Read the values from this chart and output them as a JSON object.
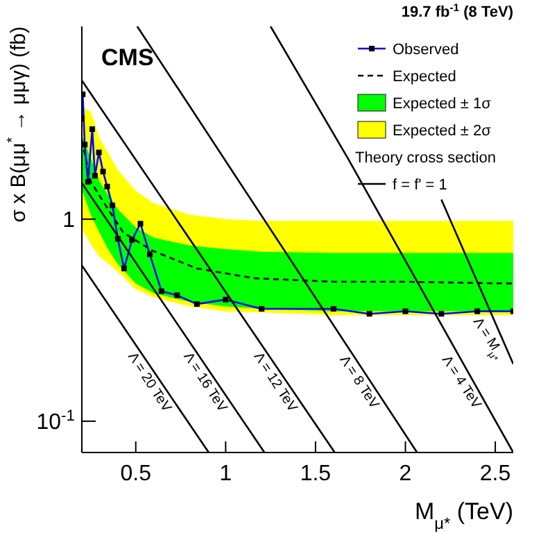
{
  "chart_data": {
    "type": "line",
    "title": "19.7 fb$^{-1}$ (8 TeV)",
    "xlabel": "M$_{μ*}$ (TeV)",
    "ylabel": "σ x B(μμ$^{*}$ → μμγ) (fb)",
    "xlim": [
      0.2,
      2.6
    ],
    "ylim": [
      0.07,
      9
    ],
    "xticks": [
      0.5,
      1,
      1.5,
      2,
      2.5
    ],
    "yticks": [
      {
        "value": 0.1,
        "label": "10$^{-1}$"
      },
      1
    ],
    "log": "y",
    "grid": false,
    "legend": "top right",
    "series": [
      {
        "name": "Expected ± 2σ",
        "type": "area",
        "color": "#ffff00",
        "x": [
          0.2,
          0.25,
          0.3,
          0.35,
          0.4,
          0.5,
          0.6,
          0.8,
          1.0,
          1.2,
          1.6,
          2.0,
          2.6
        ],
        "values": [
          null,
          null,
          null,
          null,
          null,
          null,
          null,
          null,
          null,
          null,
          null,
          null,
          null
        ],
        "lower": [
          0.9,
          0.75,
          0.65,
          0.6,
          0.55,
          0.45,
          0.41,
          0.37,
          0.35,
          0.345,
          0.335,
          0.335,
          0.335
        ],
        "upper": [
          3.6,
          3.4,
          2.5,
          2.1,
          1.75,
          1.38,
          1.2,
          1.05,
          1.0,
          0.98,
          0.98,
          0.98,
          0.98
        ]
      },
      {
        "name": "Expected ± 1σ",
        "type": "area",
        "color": "#00ff00",
        "x": [
          0.2,
          0.25,
          0.3,
          0.35,
          0.4,
          0.5,
          0.6,
          0.8,
          1.0,
          1.2,
          1.6,
          2.0,
          2.6
        ],
        "values": [
          null,
          null,
          null,
          null,
          null,
          null,
          null,
          null,
          null,
          null,
          null,
          null,
          null
        ],
        "lower": [
          1.4,
          1.05,
          0.85,
          0.7,
          0.6,
          0.48,
          0.43,
          0.39,
          0.37,
          0.36,
          0.35,
          0.35,
          0.35
        ],
        "upper": [
          2.6,
          2.0,
          1.53,
          1.3,
          1.12,
          0.91,
          0.81,
          0.74,
          0.71,
          0.69,
          0.68,
          0.68,
          0.68
        ]
      },
      {
        "name": "Expected",
        "type": "line",
        "color": "#000000",
        "line_style": "dashed",
        "marker": "none",
        "x": [
          0.2,
          0.25,
          0.33,
          0.43,
          0.59,
          0.84,
          1.16,
          1.6,
          2.0,
          2.6
        ],
        "values": [
          2.46,
          1.53,
          1.18,
          0.86,
          0.7,
          0.57,
          0.51,
          0.49,
          0.49,
          0.48
        ]
      },
      {
        "name": "Observed",
        "type": "line",
        "color": "#0000ff",
        "marker": "square",
        "x": [
          0.2,
          0.205,
          0.216,
          0.234,
          0.258,
          0.273,
          0.295,
          0.318,
          0.341,
          0.37,
          0.4,
          0.435,
          0.479,
          0.526,
          0.578,
          0.643,
          0.73,
          0.84,
          1.0,
          1.2,
          1.6,
          1.8,
          2.0,
          2.2,
          2.4,
          2.6
        ],
        "values": [
          3.15,
          4.15,
          2.34,
          1.53,
          2.79,
          1.64,
          2.14,
          1.72,
          1.45,
          1.17,
          0.8,
          0.57,
          0.79,
          0.95,
          0.67,
          0.44,
          0.42,
          0.38,
          0.4,
          0.36,
          0.36,
          0.34,
          0.35,
          0.34,
          0.35,
          0.35
        ]
      },
      {
        "type": "line",
        "color": "#000000",
        "marker": "none",
        "x": [
          0.2,
          0.906
        ],
        "values": [
          0.59,
          0.07
        ]
      },
      {
        "type": "line",
        "color": "#000000",
        "marker": "none",
        "x": [
          0.2,
          1.216
        ],
        "values": [
          1.51,
          0.07
        ]
      },
      {
        "type": "line",
        "color": "#000000",
        "marker": "none",
        "x": [
          0.2,
          1.607
        ],
        "values": [
          4.86,
          0.07
        ]
      },
      {
        "type": "line",
        "color": "#000000",
        "marker": "none",
        "x": [
          0.508,
          2.065
        ],
        "values": [
          9,
          0.07
        ]
      },
      {
        "type": "line",
        "color": "#000000",
        "marker": "none",
        "x": [
          1.25,
          1.68,
          2.6
        ],
        "values": [
          9,
          2.0,
          0.07
        ]
      },
      {
        "type": "line",
        "color": "#000000",
        "marker": "none",
        "x": [
          2.2,
          2.6
        ],
        "values": [
          1.25,
          0.192
        ]
      }
    ],
    "annotations": [
      "CMS",
      "Theory cross section",
      "f = f' = 1",
      "Λ = 20 TeV",
      "Λ = 16 TeV",
      "Λ = 12 TeV",
      "Λ = 8 TeV",
      "Λ = 4 TeV",
      "Λ = M$_{μ*}$"
    ]
  }
}
